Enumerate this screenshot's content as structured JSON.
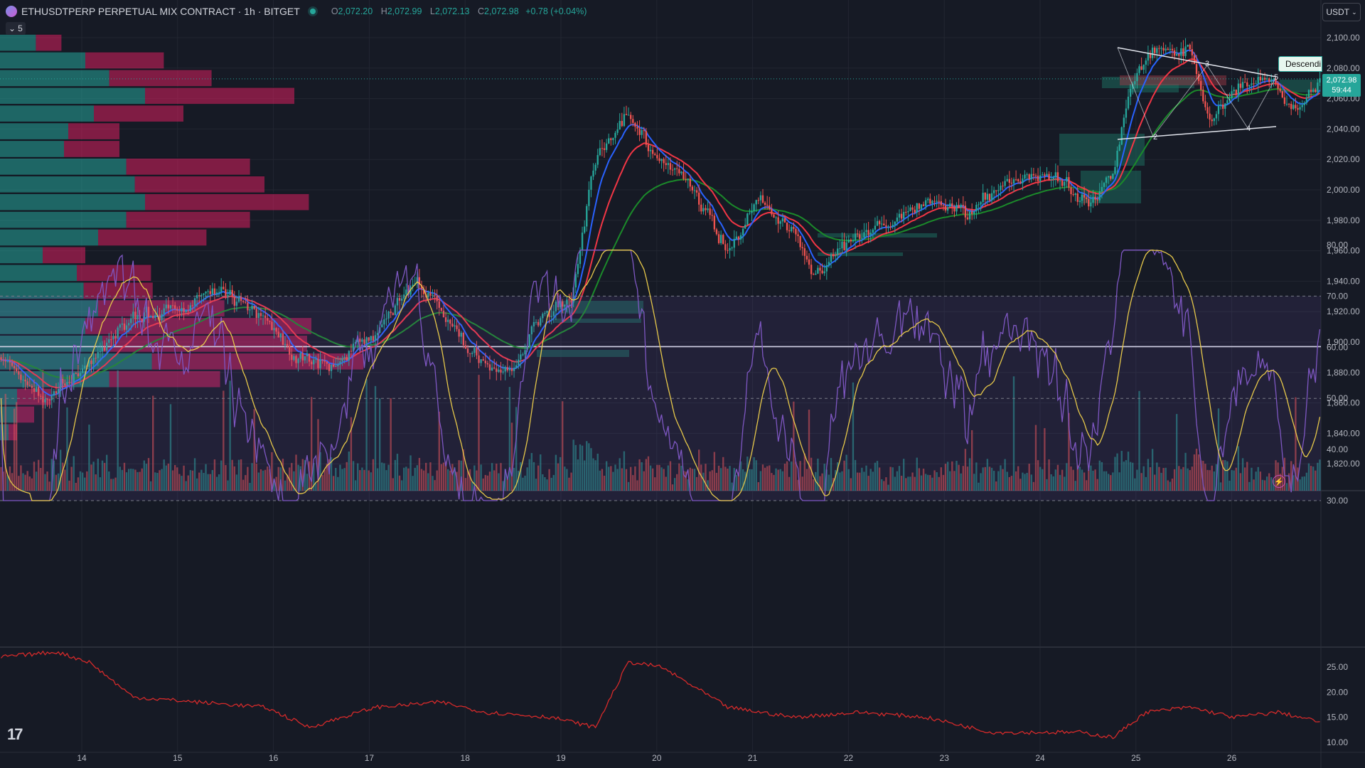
{
  "header": {
    "symbol_title": "ETHUSDTPERP PERPETUAL MIX CONTRACT · 1h · BITGET",
    "ohlc": {
      "o_label": "O",
      "o": "2,072.20",
      "h_label": "H",
      "h": "2,072.99",
      "l_label": "L",
      "l": "2,072.13",
      "c_label": "C",
      "c": "2,072.98",
      "change": "+0.78 (+0.04%)"
    },
    "collapse_count": "5"
  },
  "currency": "USDT",
  "last_price": {
    "price": "2,072.98",
    "countdown": "59:44"
  },
  "pattern_label": "Descendi",
  "chart_data": [
    {
      "type": "candlestick",
      "x_ticks": [
        "14",
        "15",
        "16",
        "17",
        "18",
        "19",
        "20",
        "21",
        "22",
        "23",
        "24",
        "25",
        "26"
      ],
      "y_ticks": [
        "2,100.00",
        "2,080.00",
        "2,060.00",
        "2,040.00",
        "2,020.00",
        "2,000.00",
        "1,980.00",
        "1,960.00",
        "1,940.00",
        "1,920.00",
        "1,900.00",
        "1,880.00",
        "1,860.00",
        "1,840.00",
        "1,820.00"
      ],
      "ylim": [
        1810,
        2105
      ],
      "horizontal_line": 1897,
      "pattern_points": [
        "2",
        "3",
        "4",
        "5"
      ],
      "anchors": [
        {
          "t": 0,
          "p": 1890
        },
        {
          "t": 20,
          "p": 1862
        },
        {
          "t": 40,
          "p": 1885
        },
        {
          "t": 60,
          "p": 1918
        },
        {
          "t": 80,
          "p": 1920
        },
        {
          "t": 100,
          "p": 1935
        },
        {
          "t": 120,
          "p": 1915
        },
        {
          "t": 135,
          "p": 1890
        },
        {
          "t": 150,
          "p": 1885
        },
        {
          "t": 170,
          "p": 1905
        },
        {
          "t": 190,
          "p": 1942
        },
        {
          "t": 200,
          "p": 1920
        },
        {
          "t": 215,
          "p": 1890
        },
        {
          "t": 230,
          "p": 1878
        },
        {
          "t": 245,
          "p": 1915
        },
        {
          "t": 260,
          "p": 1930
        },
        {
          "t": 270,
          "p": 2020
        },
        {
          "t": 285,
          "p": 2048
        },
        {
          "t": 300,
          "p": 2020
        },
        {
          "t": 315,
          "p": 2000
        },
        {
          "t": 330,
          "p": 1962
        },
        {
          "t": 345,
          "p": 1992
        },
        {
          "t": 360,
          "p": 1975
        },
        {
          "t": 370,
          "p": 1942
        },
        {
          "t": 385,
          "p": 1965
        },
        {
          "t": 400,
          "p": 1975
        },
        {
          "t": 420,
          "p": 1992
        },
        {
          "t": 440,
          "p": 1985
        },
        {
          "t": 460,
          "p": 2010
        },
        {
          "t": 480,
          "p": 2008
        },
        {
          "t": 495,
          "p": 1990
        },
        {
          "t": 505,
          "p": 2010
        },
        {
          "t": 515,
          "p": 2075
        },
        {
          "t": 525,
          "p": 2095
        },
        {
          "t": 540,
          "p": 2090
        },
        {
          "t": 550,
          "p": 2045
        },
        {
          "t": 565,
          "p": 2070
        },
        {
          "t": 580,
          "p": 2068
        },
        {
          "t": 590,
          "p": 2050
        },
        {
          "t": 600,
          "p": 2072.98
        }
      ],
      "ema_fast_color": "#2962ff",
      "ema_mid_color": "#f23645",
      "ema_slow_color": "#1b8a2a",
      "up_color": "#26a69a",
      "down_color": "#ef5350"
    },
    {
      "type": "volume_profile",
      "rows": [
        {
          "up": 0.42,
          "down": 0.3
        },
        {
          "up": 1.0,
          "down": 0.92
        },
        {
          "up": 1.28,
          "down": 1.2
        },
        {
          "up": 1.7,
          "down": 1.75
        },
        {
          "up": 1.1,
          "down": 1.05
        },
        {
          "up": 0.8,
          "down": 0.6
        },
        {
          "up": 0.75,
          "down": 0.65
        },
        {
          "up": 1.48,
          "down": 1.45
        },
        {
          "up": 1.58,
          "down": 1.52
        },
        {
          "up": 1.7,
          "down": 1.92
        },
        {
          "up": 1.48,
          "down": 1.45
        },
        {
          "up": 1.15,
          "down": 1.27
        },
        {
          "up": 0.5,
          "down": 0.5
        },
        {
          "up": 0.9,
          "down": 0.87
        },
        {
          "up": 0.98,
          "down": 0.81
        },
        {
          "up": 1.15,
          "down": 1.48
        },
        {
          "up": 1.0,
          "down": 2.65
        },
        {
          "up": 1.2,
          "down": 2.4
        },
        {
          "up": 1.78,
          "down": 2.48
        },
        {
          "up": 1.28,
          "down": 1.3
        },
        {
          "up": 0.2,
          "down": 0.4
        },
        {
          "up": 0.2,
          "down": 0.2
        },
        {
          "up": 0.1,
          "down": 0.1
        }
      ]
    },
    {
      "type": "line",
      "name": "RSI",
      "y_ticks": [
        "80.00",
        "70.00",
        "60.00",
        "50.00",
        "40.00",
        "30.00"
      ],
      "ylim": [
        28,
        82
      ],
      "upper_band": 70,
      "lower_band": 30,
      "mid_band": 50,
      "line_color": "#7e57c2",
      "ma_color": "#e6c84a"
    },
    {
      "type": "line",
      "name": "ADX",
      "y_ticks": [
        "25.00",
        "20.00",
        "15.00",
        "10.00"
      ],
      "ylim": [
        9,
        29
      ],
      "line_color": "#d62a2a",
      "anchors": [
        {
          "t": 0,
          "p": 27
        },
        {
          "t": 25,
          "p": 28
        },
        {
          "t": 40,
          "p": 26
        },
        {
          "t": 60,
          "p": 19
        },
        {
          "t": 90,
          "p": 18
        },
        {
          "t": 120,
          "p": 17
        },
        {
          "t": 140,
          "p": 13
        },
        {
          "t": 170,
          "p": 17
        },
        {
          "t": 200,
          "p": 18
        },
        {
          "t": 220,
          "p": 16
        },
        {
          "t": 250,
          "p": 15
        },
        {
          "t": 270,
          "p": 13
        },
        {
          "t": 285,
          "p": 26
        },
        {
          "t": 300,
          "p": 25
        },
        {
          "t": 330,
          "p": 17
        },
        {
          "t": 360,
          "p": 15
        },
        {
          "t": 390,
          "p": 16
        },
        {
          "t": 420,
          "p": 15
        },
        {
          "t": 450,
          "p": 12
        },
        {
          "t": 490,
          "p": 12
        },
        {
          "t": 505,
          "p": 11
        },
        {
          "t": 520,
          "p": 16
        },
        {
          "t": 540,
          "p": 17
        },
        {
          "t": 560,
          "p": 15
        },
        {
          "t": 580,
          "p": 16
        },
        {
          "t": 600,
          "p": 14
        }
      ]
    }
  ]
}
